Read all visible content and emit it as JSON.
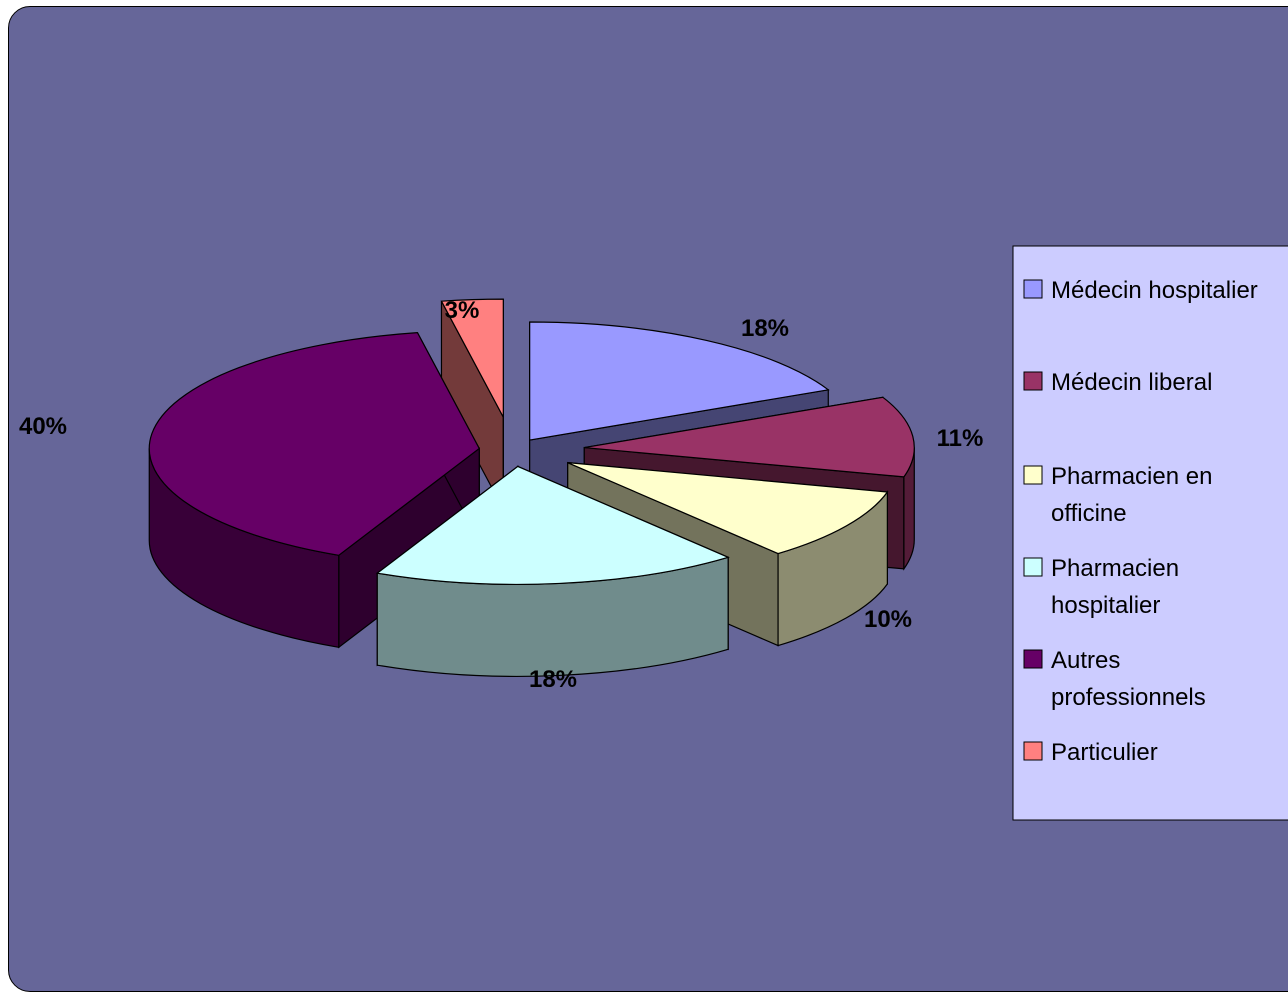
{
  "chart_data": {
    "type": "pie",
    "style": "3d-exploded",
    "legend_position": "right",
    "slices": [
      {
        "label": "Médecin hospitalier",
        "legend_lines": [
          "Médecin hospitalier"
        ],
        "value": 18,
        "value_label": "18%",
        "color": "#9999ff"
      },
      {
        "label": "Médecin liberal",
        "legend_lines": [
          "Médecin liberal"
        ],
        "value": 11,
        "value_label": "11%",
        "color": "#993366"
      },
      {
        "label": "Pharmacien en officine",
        "legend_lines": [
          "Pharmacien en",
          "officine"
        ],
        "value": 10,
        "value_label": "10%",
        "color": "#ffffcc"
      },
      {
        "label": "Pharmacien hospitalier",
        "legend_lines": [
          "Pharmacien",
          "hospitalier"
        ],
        "value": 18,
        "value_label": "18%",
        "color": "#ccffff"
      },
      {
        "label": "Autres professionnels",
        "legend_lines": [
          "Autres",
          "professionnels"
        ],
        "value": 40,
        "value_label": "40%",
        "color": "#660066"
      },
      {
        "label": "Particulier",
        "legend_lines": [
          "Particulier"
        ],
        "value": 3,
        "value_label": "3%",
        "color": "#ff8080"
      }
    ]
  },
  "colors": {
    "plot_background": "#666699",
    "legend_background": "#ccccff"
  }
}
